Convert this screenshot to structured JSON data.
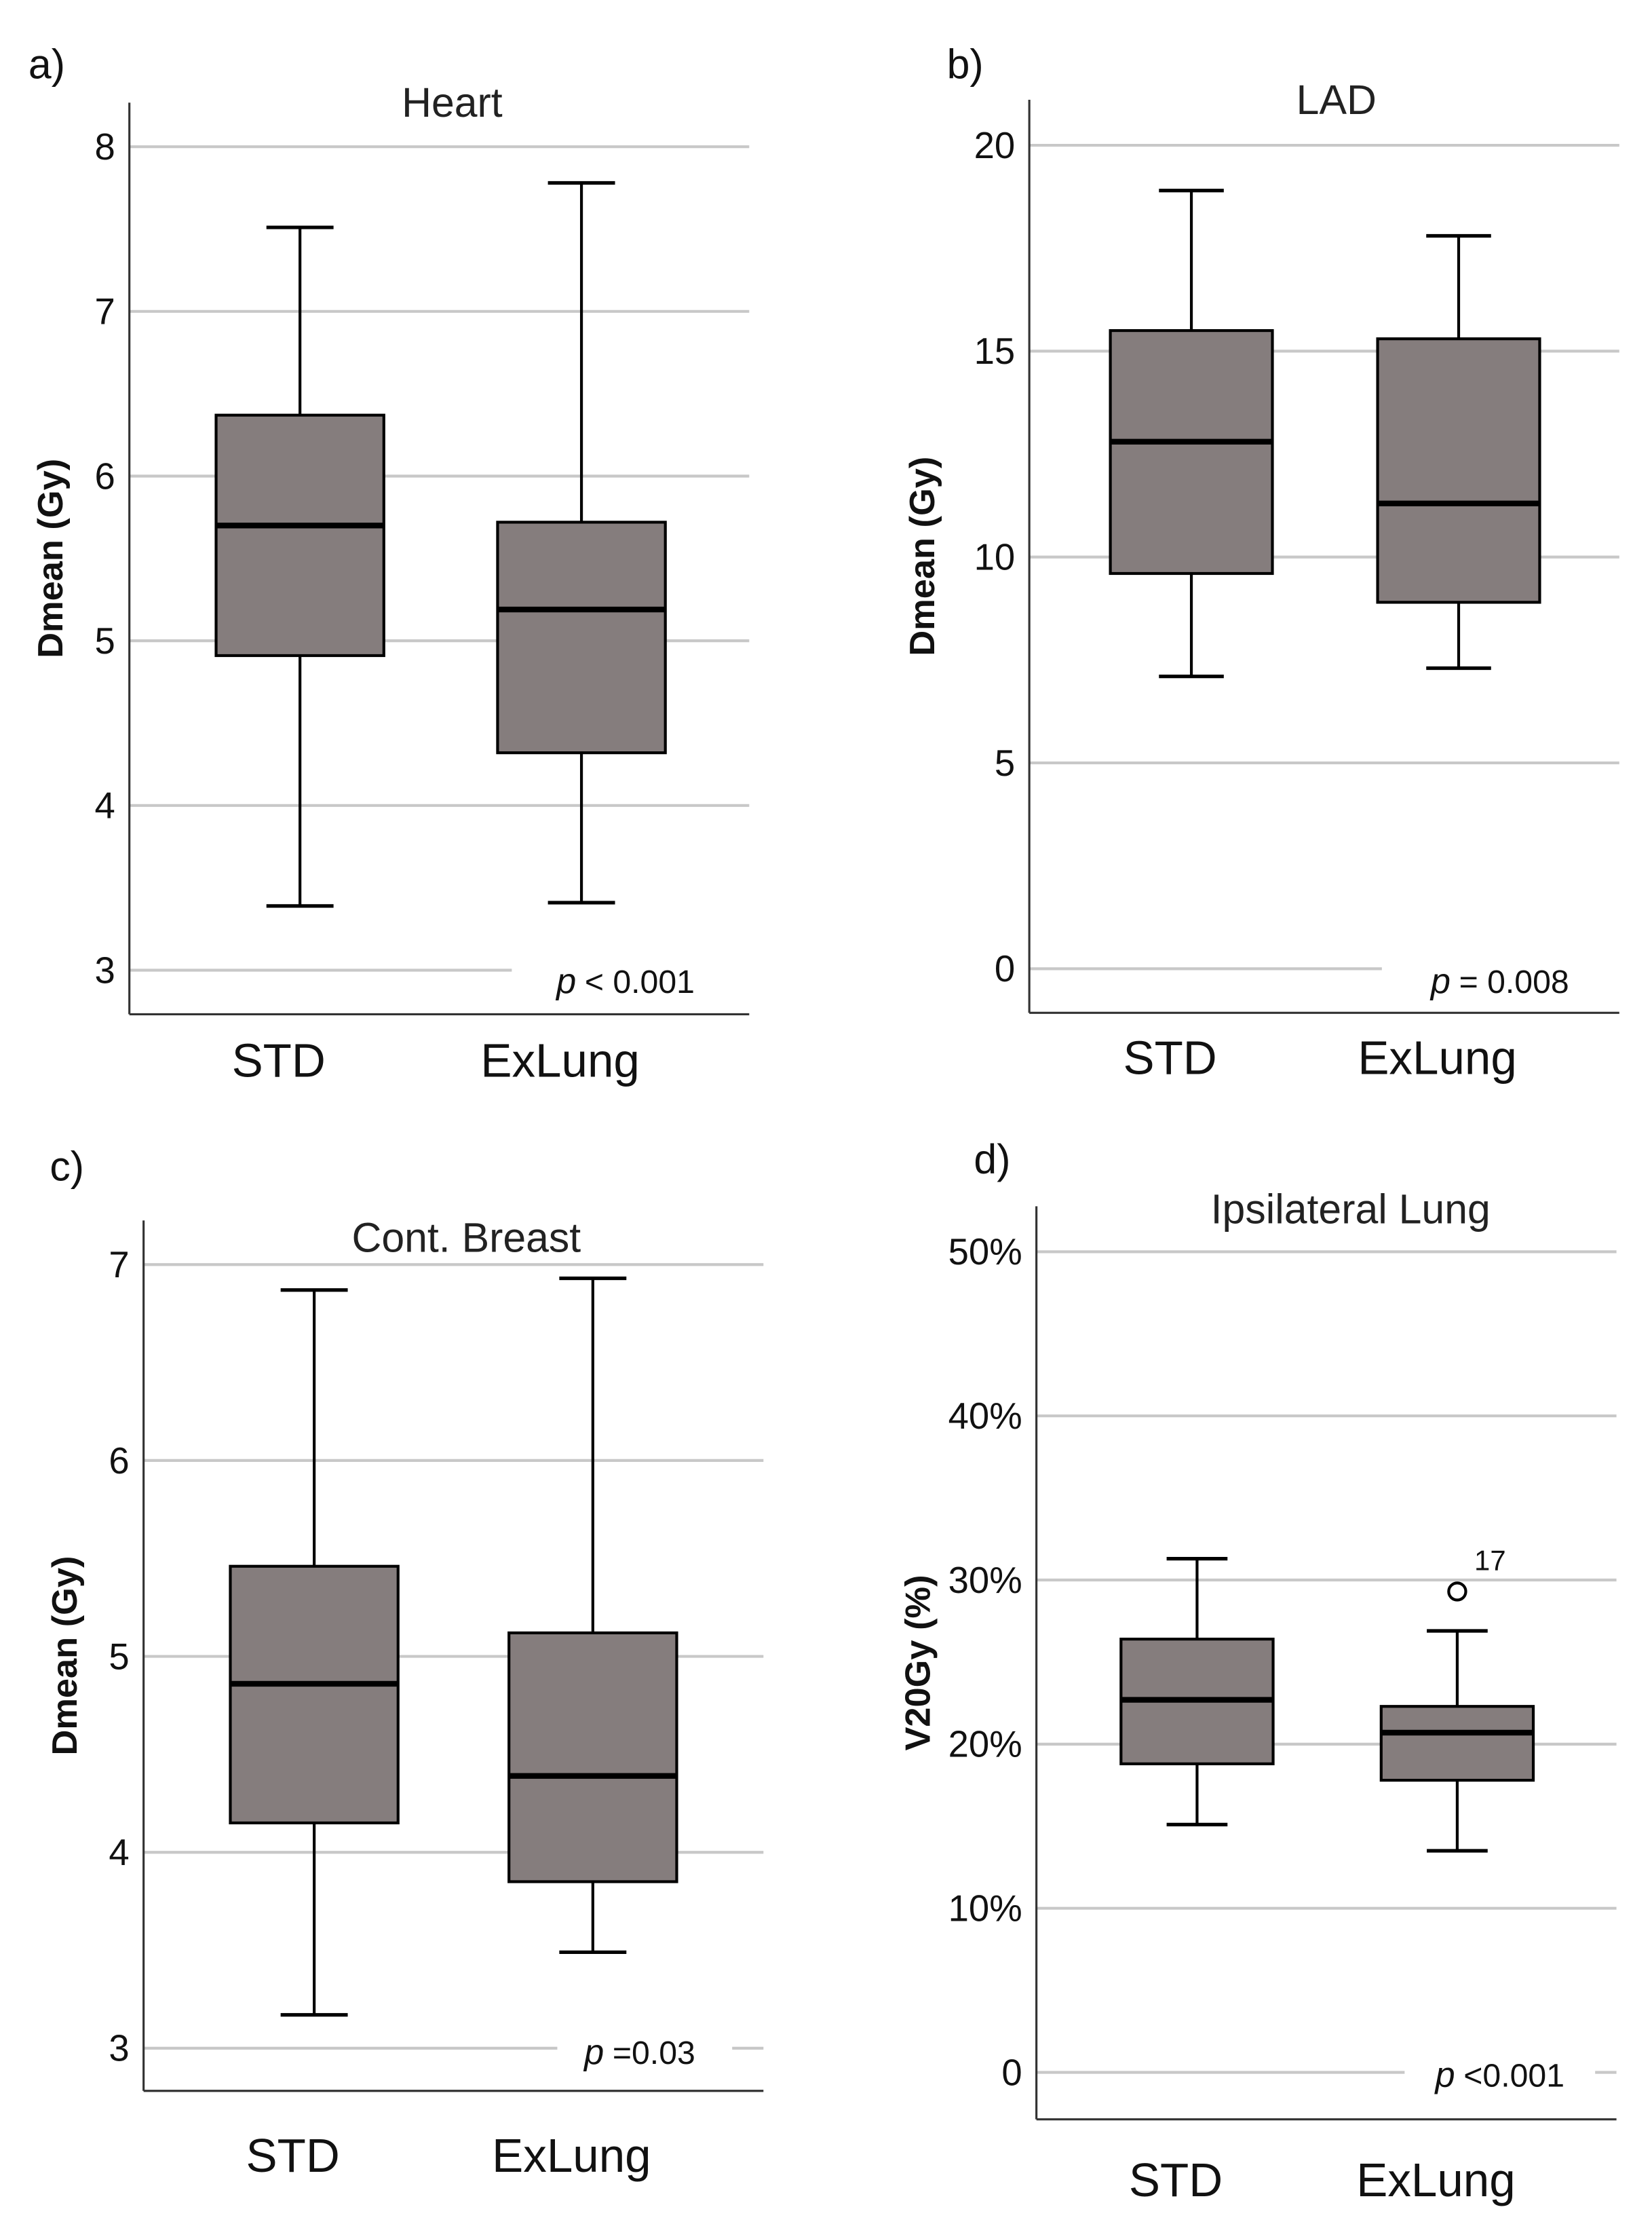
{
  "colors": {
    "box_fill": "#857d7d",
    "grid": "#c8c8c8",
    "line": "#000000"
  },
  "chart_data": [
    {
      "type": "boxplot",
      "panel": "a)",
      "title": "Heart",
      "ylabel": "Dmean (Gy)",
      "categories": [
        "STD",
        "ExLung"
      ],
      "ylim": [
        3,
        8
      ],
      "yticks": [
        3,
        4,
        5,
        6,
        7,
        8
      ],
      "ytick_labels": [
        "3",
        "4",
        "5",
        "6",
        "7",
        "8"
      ],
      "series": [
        {
          "name": "STD",
          "min": 3.39,
          "q1": 4.91,
          "median": 5.7,
          "q3": 6.37,
          "max": 7.51,
          "outliers": []
        },
        {
          "name": "ExLung",
          "min": 3.41,
          "q1": 4.32,
          "median": 5.19,
          "q3": 5.72,
          "max": 7.78,
          "outliers": []
        }
      ],
      "p_symbol": "p",
      "p_text": "< 0.001"
    },
    {
      "type": "boxplot",
      "panel": "b)",
      "title": "LAD",
      "ylabel": "Dmean (Gy)",
      "categories": [
        "STD",
        "ExLung"
      ],
      "ylim": [
        0,
        20
      ],
      "yticks": [
        0,
        5,
        10,
        15,
        20
      ],
      "ytick_labels": [
        "0",
        "5",
        "10",
        "15",
        "20"
      ],
      "series": [
        {
          "name": "STD",
          "min": 7.1,
          "q1": 9.6,
          "median": 12.8,
          "q3": 15.5,
          "max": 18.9,
          "outliers": []
        },
        {
          "name": "ExLung",
          "min": 7.3,
          "q1": 8.9,
          "median": 11.3,
          "q3": 15.3,
          "max": 17.8,
          "outliers": []
        }
      ],
      "p_symbol": "p",
      "p_text": "= 0.008"
    },
    {
      "type": "boxplot",
      "panel": "c)",
      "title": "Cont. Breast",
      "ylabel": "Dmean (Gy)",
      "categories": [
        "STD",
        "ExLung"
      ],
      "ylim": [
        3,
        7
      ],
      "yticks": [
        3,
        4,
        5,
        6,
        7
      ],
      "ytick_labels": [
        "3",
        "4",
        "5",
        "6",
        "7"
      ],
      "series": [
        {
          "name": "STD",
          "min": 3.17,
          "q1": 4.15,
          "median": 4.86,
          "q3": 5.46,
          "max": 6.87,
          "outliers": []
        },
        {
          "name": "ExLung",
          "min": 3.49,
          "q1": 3.85,
          "median": 4.39,
          "q3": 5.12,
          "max": 6.93,
          "outliers": []
        }
      ],
      "p_symbol": "p",
      "p_text": "=0.03"
    },
    {
      "type": "boxplot",
      "panel": "d)",
      "title": "Ipsilateral Lung",
      "ylabel": "V20Gy (%)",
      "categories": [
        "STD",
        "ExLung"
      ],
      "ylim": [
        0,
        50
      ],
      "yticks": [
        0,
        10,
        20,
        30,
        40,
        50
      ],
      "ytick_labels": [
        "0",
        "10%",
        "20%",
        "30%",
        "40%",
        "50%"
      ],
      "series": [
        {
          "name": "STD",
          "min": 15.1,
          "q1": 18.8,
          "median": 22.7,
          "q3": 26.4,
          "max": 31.3,
          "outliers": []
        },
        {
          "name": "ExLung",
          "min": 13.5,
          "q1": 17.8,
          "median": 20.7,
          "q3": 22.3,
          "max": 26.9,
          "outliers": [
            {
              "value": 29.3,
              "label": "17"
            }
          ]
        }
      ],
      "p_symbol": "p",
      "p_text": "<0.001"
    }
  ]
}
